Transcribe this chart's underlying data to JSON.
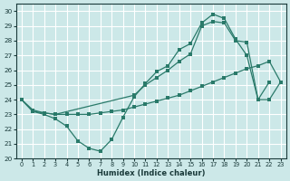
{
  "xlabel": "Humidex (Indice chaleur)",
  "bg_color": "#cce8e8",
  "grid_color": "#ffffff",
  "line_color": "#2a7a6a",
  "xlim": [
    -0.5,
    23.5
  ],
  "ylim": [
    20,
    30.5
  ],
  "xticks": [
    0,
    1,
    2,
    3,
    4,
    5,
    6,
    7,
    8,
    9,
    10,
    11,
    12,
    13,
    14,
    15,
    16,
    17,
    18,
    19,
    20,
    21,
    22,
    23
  ],
  "yticks": [
    20,
    21,
    22,
    23,
    24,
    25,
    26,
    27,
    28,
    29,
    30
  ],
  "series1_x": [
    0,
    1,
    2,
    3,
    4,
    5,
    6,
    7,
    8,
    9,
    10,
    11,
    12,
    13,
    14,
    15,
    16,
    17,
    18,
    19,
    20,
    21,
    22
  ],
  "series1_y": [
    24.0,
    23.2,
    23.0,
    22.7,
    22.2,
    21.2,
    20.7,
    20.5,
    21.3,
    22.8,
    24.2,
    25.1,
    25.9,
    26.3,
    27.4,
    27.8,
    29.2,
    29.8,
    29.5,
    28.1,
    27.0,
    24.0,
    25.2
  ],
  "series2_x": [
    0,
    1,
    2,
    3,
    4,
    5,
    6,
    7,
    8,
    9,
    10,
    11,
    12,
    13,
    14,
    15,
    16,
    17,
    18,
    19,
    20,
    21,
    22,
    23
  ],
  "series2_y": [
    24.0,
    23.3,
    23.1,
    23.0,
    23.0,
    23.0,
    23.0,
    23.1,
    23.2,
    23.3,
    23.5,
    23.7,
    23.9,
    24.1,
    24.3,
    24.6,
    24.9,
    25.2,
    25.5,
    25.8,
    26.1,
    26.3,
    26.6,
    25.2
  ],
  "series3_x": [
    0,
    1,
    2,
    3,
    10,
    11,
    12,
    13,
    14,
    15,
    16,
    17,
    18,
    19,
    20,
    21,
    22,
    23
  ],
  "series3_y": [
    24.0,
    23.2,
    23.1,
    23.0,
    24.3,
    25.0,
    25.5,
    26.0,
    26.6,
    27.1,
    29.0,
    29.3,
    29.2,
    28.0,
    27.9,
    24.0,
    24.0,
    25.2
  ]
}
